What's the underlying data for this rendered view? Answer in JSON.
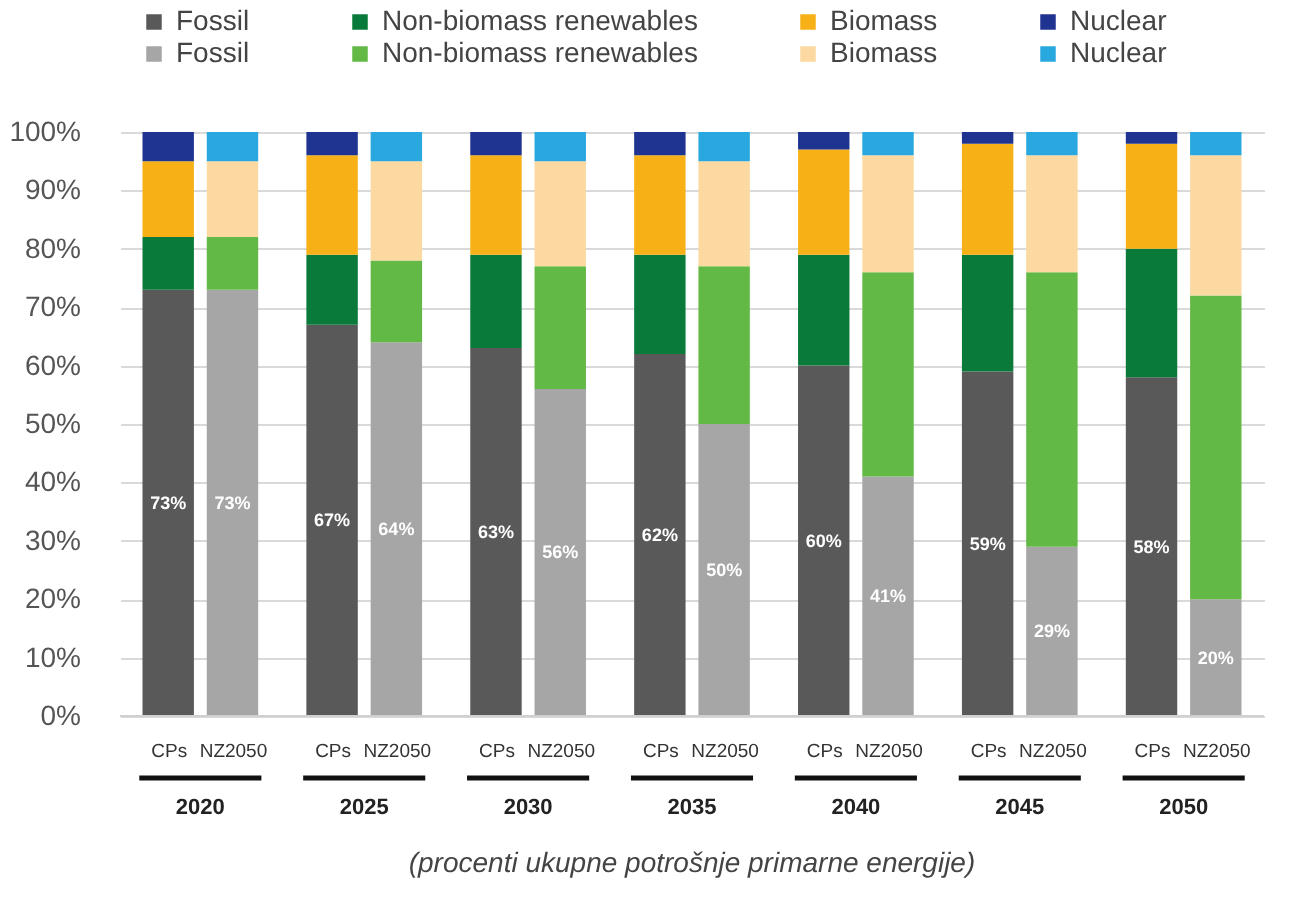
{
  "chart_data": {
    "type": "bar",
    "stacked": true,
    "categories": [
      "CPs",
      "NZ2050",
      "CPs",
      "NZ2050",
      "CPs",
      "NZ2050",
      "CPs",
      "NZ2050",
      "CPs",
      "NZ2050",
      "CPs",
      "NZ2050",
      "CPs",
      "NZ2050"
    ],
    "series": [
      {
        "name": "Fossil",
        "color": "#595959",
        "values": [
          73,
          null,
          67,
          null,
          63,
          null,
          62,
          null,
          60,
          null,
          59,
          null,
          58,
          null
        ],
        "value_labels": [
          "73%",
          null,
          "67%",
          null,
          "63%",
          null,
          "62%",
          null,
          "60%",
          null,
          "59%",
          null,
          "58%",
          null
        ]
      },
      {
        "name": "Non-biomass renewables",
        "color": "#0a7a3a",
        "values": [
          9,
          null,
          12,
          null,
          16,
          null,
          17,
          null,
          19,
          null,
          20,
          null,
          22,
          null
        ]
      },
      {
        "name": "Biomass",
        "color": "#f7b116",
        "values": [
          13,
          null,
          17,
          null,
          17,
          null,
          17,
          null,
          18,
          null,
          19,
          null,
          18,
          null
        ]
      },
      {
        "name": "Nuclear",
        "color": "#1f3491",
        "values": [
          5,
          null,
          4,
          null,
          4,
          null,
          4,
          null,
          3,
          null,
          2,
          null,
          2,
          null
        ]
      },
      {
        "name": "Fossil",
        "color": "#a6a6a6",
        "values": [
          null,
          73,
          null,
          64,
          null,
          56,
          null,
          50,
          null,
          41,
          null,
          29,
          null,
          20
        ],
        "value_labels": [
          null,
          "73%",
          null,
          "64%",
          null,
          "56%",
          null,
          "50%",
          null,
          "41%",
          null,
          "29%",
          null,
          "20%"
        ]
      },
      {
        "name": "Non-biomass renewables",
        "color": "#63b946",
        "values": [
          null,
          9,
          null,
          14,
          null,
          21,
          null,
          27,
          null,
          35,
          null,
          47,
          null,
          52
        ]
      },
      {
        "name": "Biomass",
        "color": "#fcd9a0",
        "values": [
          null,
          13,
          null,
          17,
          null,
          18,
          null,
          18,
          null,
          20,
          null,
          20,
          null,
          24
        ]
      },
      {
        "name": "Nuclear",
        "color": "#29a8e0",
        "values": [
          null,
          5,
          null,
          5,
          null,
          5,
          null,
          5,
          null,
          4,
          null,
          4,
          null,
          4
        ]
      }
    ],
    "ylim": [
      0,
      100
    ],
    "yticks": [
      {
        "value": 0,
        "label": "0%"
      },
      {
        "value": 10,
        "label": "10%"
      },
      {
        "value": 20,
        "label": "20%"
      },
      {
        "value": 30,
        "label": "30%"
      },
      {
        "value": 40,
        "label": "40%"
      },
      {
        "value": 50,
        "label": "50%"
      },
      {
        "value": 60,
        "label": "60%"
      },
      {
        "value": 70,
        "label": "70%"
      },
      {
        "value": 80,
        "label": "80%"
      },
      {
        "value": 90,
        "label": "90%"
      },
      {
        "value": 100,
        "label": "100%"
      }
    ],
    "grid": "y",
    "legend": "top",
    "xlabel": "(procenti ukupne potrošnje primarne energije)",
    "annotations": [
      "2020",
      "2025",
      "2030",
      "2035",
      "2040",
      "2045",
      "2050"
    ]
  }
}
